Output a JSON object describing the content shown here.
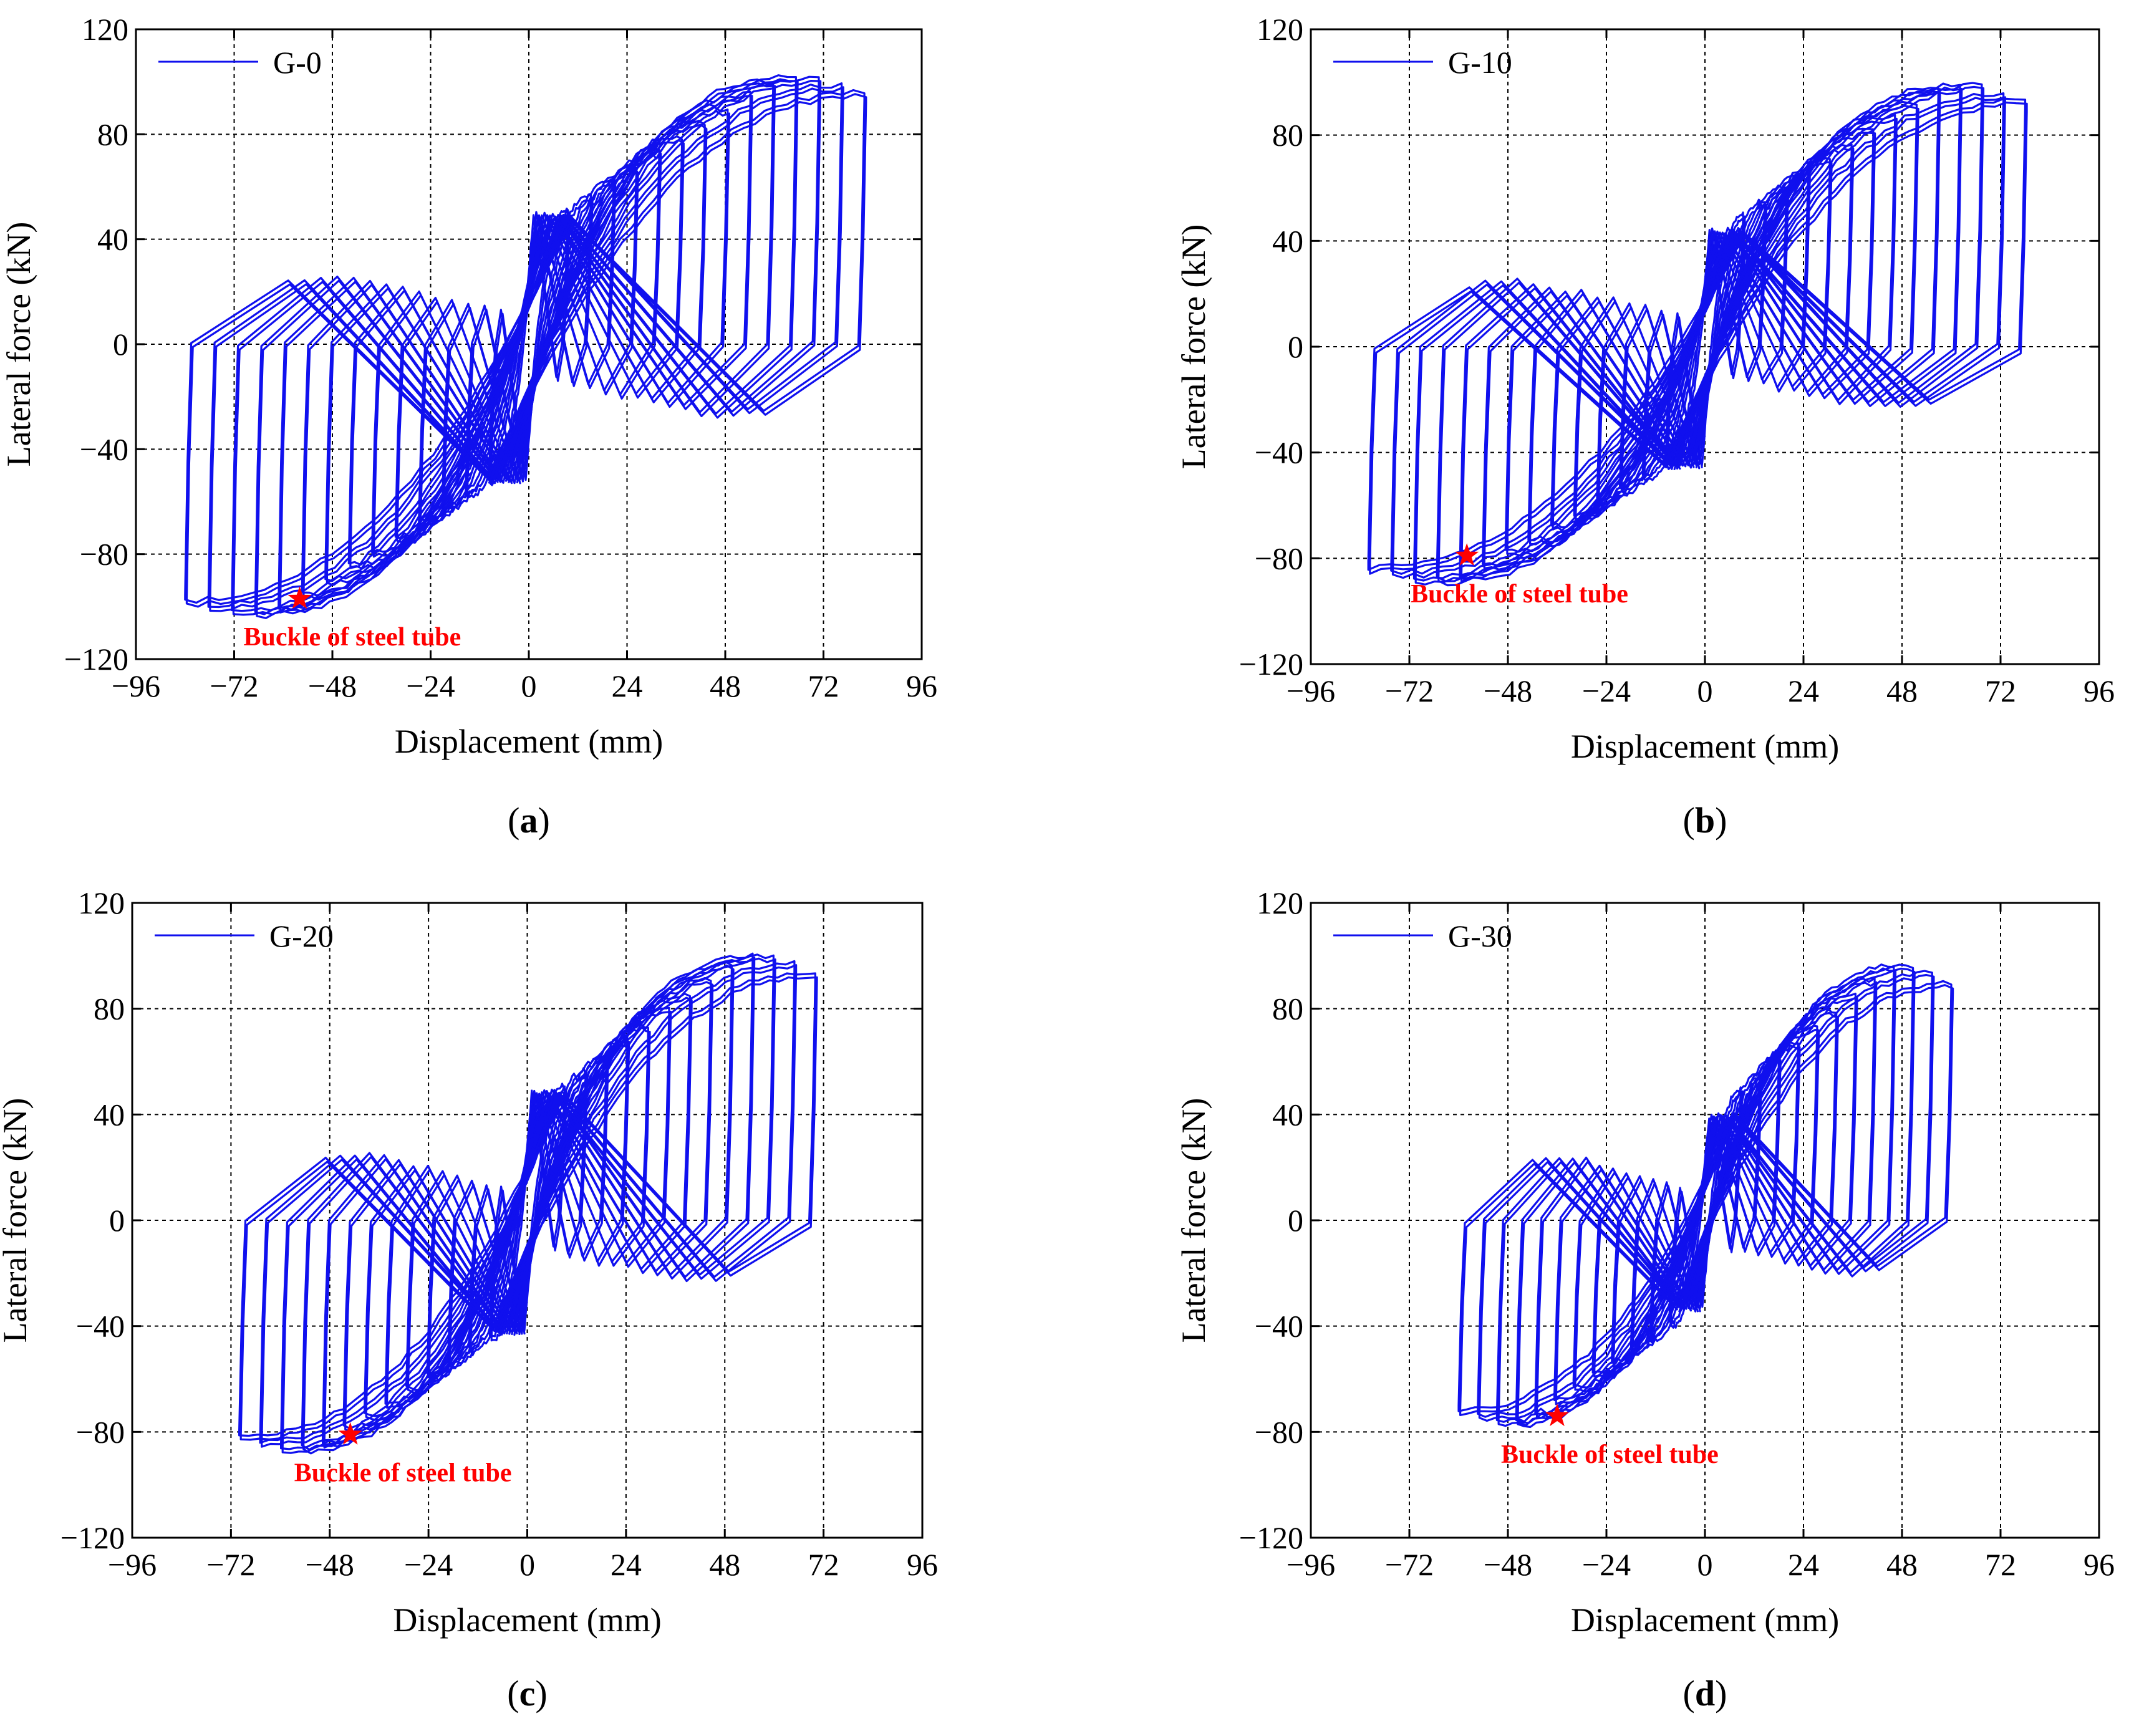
{
  "colors": {
    "series": "#1010ee",
    "annotation": "#ff0000",
    "grid": "#000000"
  },
  "chart_data": [
    {
      "type": "line",
      "panel": "(a)",
      "caption_letter": "a",
      "legend": "G-0",
      "xlabel": "Displacement (mm)",
      "ylabel": "Lateral force (kN)",
      "xlim": [
        -96,
        96
      ],
      "ylim": [
        -120,
        120
      ],
      "xticks": [
        -96,
        -72,
        -48,
        -24,
        0,
        24,
        48,
        72,
        96
      ],
      "yticks": [
        -120,
        -80,
        -40,
        0,
        40,
        80,
        120
      ],
      "xtick_labels": [
        "−96",
        "−72",
        "−48",
        "−24",
        "0",
        "24",
        "48",
        "72",
        "96"
      ],
      "ytick_labels": [
        "−120",
        "−80",
        "−40",
        "0",
        "40",
        "80",
        "120"
      ],
      "grid": true,
      "max_displacement_pos": 82,
      "max_displacement_neg": -84,
      "peak_force_pos": 102,
      "peak_force_neg": -102,
      "residual_upper": 90,
      "residual_lower": -92,
      "cycles": 14,
      "annotation": {
        "text": "Buckle of steel tube",
        "x": -56,
        "y": -97
      }
    },
    {
      "type": "line",
      "panel": "(b)",
      "caption_letter": "b",
      "legend": "G-10",
      "xlabel": "Displacement (mm)",
      "ylabel": "Lateral force (kN)",
      "xlim": [
        -96,
        96
      ],
      "ylim": [
        -120,
        120
      ],
      "xticks": [
        -96,
        -72,
        -48,
        -24,
        0,
        24,
        48,
        72,
        96
      ],
      "yticks": [
        -120,
        -80,
        -40,
        0,
        40,
        80,
        120
      ],
      "xtick_labels": [
        "−96",
        "−72",
        "−48",
        "−24",
        "0",
        "24",
        "48",
        "72",
        "96"
      ],
      "ytick_labels": [
        "−120",
        "−80",
        "−40",
        "0",
        "40",
        "80",
        "120"
      ],
      "grid": true,
      "max_displacement_pos": 78,
      "max_displacement_neg": -82,
      "peak_force_pos": 99,
      "peak_force_neg": -88,
      "residual_upper": 80,
      "residual_lower": -80,
      "cycles": 14,
      "annotation": {
        "text": "Buckle of steel tube",
        "x": -58,
        "y": -79
      }
    },
    {
      "type": "line",
      "panel": "(c)",
      "caption_letter": "c",
      "legend": "G-20",
      "xlabel": "Displacement (mm)",
      "ylabel": "Lateral force (kN)",
      "xlim": [
        -96,
        96
      ],
      "ylim": [
        -120,
        120
      ],
      "xticks": [
        -96,
        -72,
        -48,
        -24,
        0,
        24,
        48,
        72,
        96
      ],
      "yticks": [
        -120,
        -80,
        -40,
        0,
        40,
        80,
        120
      ],
      "xtick_labels": [
        "−96",
        "−72",
        "−48",
        "−24",
        "0",
        "24",
        "48",
        "72",
        "96"
      ],
      "ytick_labels": [
        "−120",
        "−80",
        "−40",
        "0",
        "40",
        "80",
        "120"
      ],
      "grid": true,
      "max_displacement_pos": 70,
      "max_displacement_neg": -70,
      "peak_force_pos": 100,
      "peak_force_neg": -86,
      "residual_upper": 88,
      "residual_lower": -74,
      "cycles": 13,
      "annotation": {
        "text": "Buckle of steel tube",
        "x": -43,
        "y": -81
      }
    },
    {
      "type": "line",
      "panel": "(d)",
      "caption_letter": "d",
      "legend": "G-30",
      "xlabel": "Displacement (mm)",
      "ylabel": "Lateral force (kN)",
      "xlim": [
        -96,
        96
      ],
      "ylim": [
        -120,
        120
      ],
      "xticks": [
        -96,
        -72,
        -48,
        -24,
        0,
        24,
        48,
        72,
        96
      ],
      "yticks": [
        -120,
        -80,
        -40,
        0,
        40,
        80,
        120
      ],
      "xtick_labels": [
        "−96",
        "−72",
        "−48",
        "−24",
        "0",
        "24",
        "48",
        "72",
        "96"
      ],
      "ytick_labels": [
        "−120",
        "−80",
        "−40",
        "0",
        "40",
        "80",
        "120"
      ],
      "grid": true,
      "max_displacement_pos": 60,
      "max_displacement_neg": -60,
      "peak_force_pos": 96,
      "peak_force_neg": -76,
      "residual_upper": 72,
      "residual_lower": -58,
      "cycles": 12,
      "annotation": {
        "text": "Buckle of steel tube",
        "x": -36,
        "y": -74
      }
    }
  ]
}
